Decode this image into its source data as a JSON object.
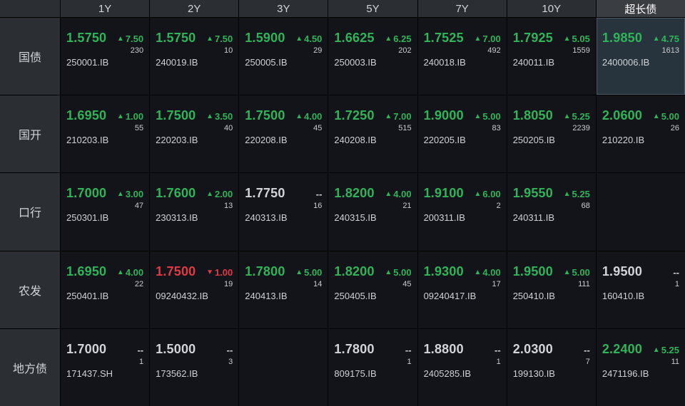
{
  "columns": [
    "1Y",
    "2Y",
    "3Y",
    "5Y",
    "7Y",
    "10Y",
    "超长债"
  ],
  "active_column": 6,
  "colors": {
    "up": "#2fb45a",
    "down": "#e23a44",
    "flat": "#d2d4d8"
  },
  "rows": [
    {
      "label": "国债",
      "cells": [
        {
          "yield": "1.5750",
          "dir": "up",
          "change": "7.50",
          "count": "230",
          "code": "250001.IB"
        },
        {
          "yield": "1.5750",
          "dir": "up",
          "change": "7.50",
          "count": "10",
          "code": "240019.IB"
        },
        {
          "yield": "1.5900",
          "dir": "up",
          "change": "4.50",
          "count": "29",
          "code": "250005.IB"
        },
        {
          "yield": "1.6625",
          "dir": "up",
          "change": "6.25",
          "count": "202",
          "code": "250003.IB"
        },
        {
          "yield": "1.7525",
          "dir": "up",
          "change": "7.00",
          "count": "492",
          "code": "240018.IB"
        },
        {
          "yield": "1.7925",
          "dir": "up",
          "change": "5.05",
          "count": "1559",
          "code": "240011.IB"
        },
        {
          "yield": "1.9850",
          "dir": "up",
          "change": "4.75",
          "count": "1613",
          "code": "2400006.IB",
          "selected": true
        }
      ]
    },
    {
      "label": "国开",
      "cells": [
        {
          "yield": "1.6950",
          "dir": "up",
          "change": "1.00",
          "count": "55",
          "code": "210203.IB"
        },
        {
          "yield": "1.7500",
          "dir": "up",
          "change": "3.50",
          "count": "40",
          "code": "220203.IB"
        },
        {
          "yield": "1.7500",
          "dir": "up",
          "change": "4.00",
          "count": "45",
          "code": "220208.IB"
        },
        {
          "yield": "1.7250",
          "dir": "up",
          "change": "7.00",
          "count": "515",
          "code": "240208.IB"
        },
        {
          "yield": "1.9000",
          "dir": "up",
          "change": "5.00",
          "count": "83",
          "code": "220205.IB"
        },
        {
          "yield": "1.8050",
          "dir": "up",
          "change": "5.25",
          "count": "2239",
          "code": "250205.IB"
        },
        {
          "yield": "2.0600",
          "dir": "up",
          "change": "5.00",
          "count": "26",
          "code": "210220.IB"
        }
      ]
    },
    {
      "label": "口行",
      "cells": [
        {
          "yield": "1.7000",
          "dir": "up",
          "change": "3.00",
          "count": "47",
          "code": "250301.IB"
        },
        {
          "yield": "1.7600",
          "dir": "up",
          "change": "2.00",
          "count": "13",
          "code": "230313.IB"
        },
        {
          "yield": "1.7750",
          "dir": "flat",
          "change": "--",
          "count": "16",
          "code": "240313.IB"
        },
        {
          "yield": "1.8200",
          "dir": "up",
          "change": "4.00",
          "count": "21",
          "code": "240315.IB"
        },
        {
          "yield": "1.9100",
          "dir": "up",
          "change": "6.00",
          "count": "2",
          "code": "200311.IB"
        },
        {
          "yield": "1.9550",
          "dir": "up",
          "change": "5.25",
          "count": "68",
          "code": "240311.IB"
        },
        null
      ]
    },
    {
      "label": "农发",
      "cells": [
        {
          "yield": "1.6950",
          "dir": "up",
          "change": "4.00",
          "count": "22",
          "code": "250401.IB"
        },
        {
          "yield": "1.7500",
          "dir": "down",
          "change": "1.00",
          "count": "19",
          "code": "09240432.IB"
        },
        {
          "yield": "1.7800",
          "dir": "up",
          "change": "5.00",
          "count": "14",
          "code": "240413.IB"
        },
        {
          "yield": "1.8200",
          "dir": "up",
          "change": "5.00",
          "count": "45",
          "code": "250405.IB"
        },
        {
          "yield": "1.9300",
          "dir": "up",
          "change": "4.00",
          "count": "17",
          "code": "09240417.IB"
        },
        {
          "yield": "1.9500",
          "dir": "up",
          "change": "5.00",
          "count": "111",
          "code": "250410.IB"
        },
        {
          "yield": "1.9500",
          "dir": "flat",
          "change": "--",
          "count": "1",
          "code": "160410.IB"
        }
      ]
    },
    {
      "label": "地方债",
      "cells": [
        {
          "yield": "1.7000",
          "dir": "flat",
          "change": "--",
          "count": "1",
          "code": "171437.SH"
        },
        {
          "yield": "1.5000",
          "dir": "flat",
          "change": "--",
          "count": "3",
          "code": "173562.IB"
        },
        null,
        {
          "yield": "1.7800",
          "dir": "flat",
          "change": "--",
          "count": "1",
          "code": "809175.IB"
        },
        {
          "yield": "1.8800",
          "dir": "flat",
          "change": "--",
          "count": "1",
          "code": "2405285.IB"
        },
        {
          "yield": "2.0300",
          "dir": "flat",
          "change": "--",
          "count": "7",
          "code": "199130.IB"
        },
        {
          "yield": "2.2400",
          "dir": "up",
          "change": "5.25",
          "count": "11",
          "code": "2471196.IB"
        }
      ]
    }
  ]
}
